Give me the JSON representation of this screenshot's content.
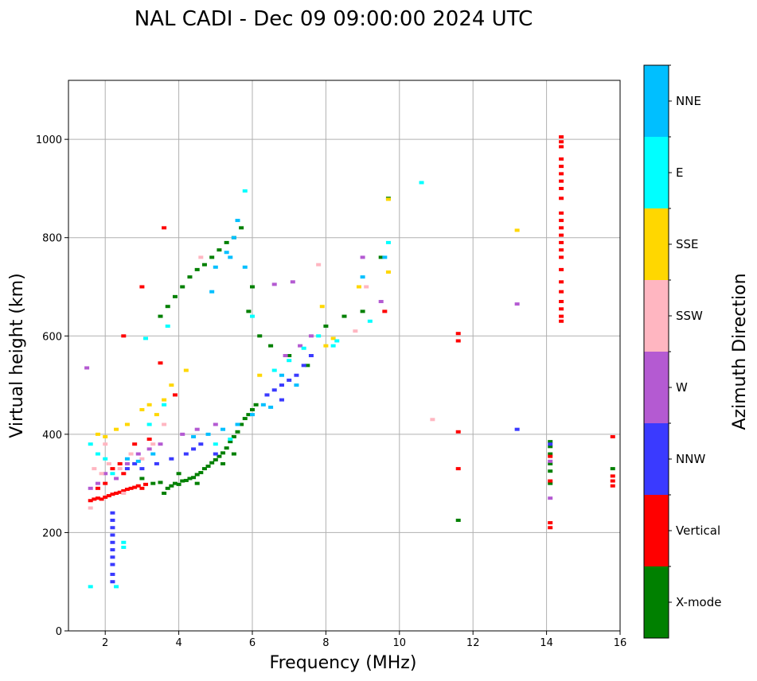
{
  "chart_data": {
    "type": "scatter",
    "title": "NAL CADI - Dec 09 09:00:00 2024 UTC",
    "xlabel": "Frequency (MHz)",
    "ylabel": "Virtual height (km)",
    "xlim": [
      1,
      16
    ],
    "ylim": [
      0,
      1120
    ],
    "xticks": [
      2,
      4,
      6,
      8,
      10,
      12,
      14,
      16
    ],
    "yticks": [
      0,
      200,
      400,
      600,
      800,
      1000
    ],
    "grid": true,
    "colorbar": {
      "title": "Azimuth Direction",
      "entries": [
        {
          "name": "X-mode",
          "color": "#008000"
        },
        {
          "name": "Vertical",
          "color": "#ff0000"
        },
        {
          "name": "NNW",
          "color": "#3a3aff"
        },
        {
          "name": "W",
          "color": "#b45ad2"
        },
        {
          "name": "SSW",
          "color": "#ffb6c1"
        },
        {
          "name": "SSE",
          "color": "#ffd700"
        },
        {
          "name": "E",
          "color": "#00ffff"
        },
        {
          "name": "NNE",
          "color": "#00bfff"
        }
      ]
    },
    "series": [
      {
        "name": "X-mode",
        "points": [
          [
            3.6,
            280
          ],
          [
            3.7,
            290
          ],
          [
            3.8,
            295
          ],
          [
            3.9,
            300
          ],
          [
            4.0,
            298
          ],
          [
            4.1,
            305
          ],
          [
            4.2,
            306
          ],
          [
            4.3,
            310
          ],
          [
            4.4,
            312
          ],
          [
            4.5,
            318
          ],
          [
            4.6,
            322
          ],
          [
            4.7,
            330
          ],
          [
            4.8,
            335
          ],
          [
            4.9,
            342
          ],
          [
            5.0,
            348
          ],
          [
            5.1,
            355
          ],
          [
            5.2,
            362
          ],
          [
            5.3,
            372
          ],
          [
            5.4,
            385
          ],
          [
            5.5,
            395
          ],
          [
            5.6,
            405
          ],
          [
            5.7,
            420
          ],
          [
            5.8,
            432
          ],
          [
            5.9,
            440
          ],
          [
            6.0,
            450
          ],
          [
            6.1,
            460
          ],
          [
            3.3,
            300
          ],
          [
            3.5,
            302
          ],
          [
            3.0,
            310
          ],
          [
            4.0,
            320
          ],
          [
            4.5,
            300
          ],
          [
            5.2,
            340
          ],
          [
            5.5,
            360
          ],
          [
            3.5,
            640
          ],
          [
            3.7,
            660
          ],
          [
            3.9,
            680
          ],
          [
            4.1,
            700
          ],
          [
            4.3,
            720
          ],
          [
            4.5,
            735
          ],
          [
            4.7,
            745
          ],
          [
            4.9,
            760
          ],
          [
            5.1,
            775
          ],
          [
            5.3,
            790
          ],
          [
            5.5,
            800
          ],
          [
            5.7,
            820
          ],
          [
            6.2,
            600
          ],
          [
            6.5,
            580
          ],
          [
            7.0,
            560
          ],
          [
            7.5,
            540
          ],
          [
            8.0,
            620
          ],
          [
            8.5,
            640
          ],
          [
            9.0,
            650
          ],
          [
            9.5,
            760
          ],
          [
            9.7,
            880
          ],
          [
            14.1,
            300
          ],
          [
            14.1,
            325
          ],
          [
            14.1,
            340
          ],
          [
            14.1,
            360
          ],
          [
            14.1,
            375
          ],
          [
            14.1,
            385
          ],
          [
            15.8,
            330
          ],
          [
            11.6,
            225
          ],
          [
            5.9,
            650
          ],
          [
            6.0,
            700
          ]
        ]
      },
      {
        "name": "Vertical",
        "points": [
          [
            1.6,
            265
          ],
          [
            1.7,
            268
          ],
          [
            1.8,
            270
          ],
          [
            1.9,
            268
          ],
          [
            2.0,
            272
          ],
          [
            2.1,
            275
          ],
          [
            2.2,
            278
          ],
          [
            2.3,
            280
          ],
          [
            2.4,
            282
          ],
          [
            2.5,
            285
          ],
          [
            2.6,
            288
          ],
          [
            2.7,
            290
          ],
          [
            2.8,
            292
          ],
          [
            2.9,
            295
          ],
          [
            3.0,
            290
          ],
          [
            3.1,
            298
          ],
          [
            2.2,
            330
          ],
          [
            2.4,
            340
          ],
          [
            2.5,
            320
          ],
          [
            2.0,
            300
          ],
          [
            1.8,
            290
          ],
          [
            2.8,
            380
          ],
          [
            3.2,
            390
          ],
          [
            3.0,
            700
          ],
          [
            3.5,
            545
          ],
          [
            3.6,
            820
          ],
          [
            2.5,
            600
          ],
          [
            3.9,
            480
          ],
          [
            14.4,
            1005
          ],
          [
            14.4,
            995
          ],
          [
            14.4,
            985
          ],
          [
            14.4,
            960
          ],
          [
            14.4,
            945
          ],
          [
            14.4,
            930
          ],
          [
            14.4,
            915
          ],
          [
            14.4,
            900
          ],
          [
            14.4,
            880
          ],
          [
            14.4,
            850
          ],
          [
            14.4,
            835
          ],
          [
            14.4,
            820
          ],
          [
            14.4,
            805
          ],
          [
            14.4,
            790
          ],
          [
            14.4,
            775
          ],
          [
            14.4,
            760
          ],
          [
            14.4,
            735
          ],
          [
            14.4,
            710
          ],
          [
            14.4,
            690
          ],
          [
            14.4,
            670
          ],
          [
            14.4,
            655
          ],
          [
            14.4,
            640
          ],
          [
            14.4,
            630
          ],
          [
            14.1,
            220
          ],
          [
            14.1,
            210
          ],
          [
            14.1,
            305
          ],
          [
            14.1,
            355
          ],
          [
            15.8,
            395
          ],
          [
            15.8,
            315
          ],
          [
            15.8,
            305
          ],
          [
            15.8,
            295
          ],
          [
            11.6,
            605
          ],
          [
            11.6,
            590
          ],
          [
            11.6,
            405
          ],
          [
            11.6,
            330
          ],
          [
            9.6,
            650
          ]
        ]
      },
      {
        "name": "NNW",
        "points": [
          [
            2.2,
            240
          ],
          [
            2.2,
            225
          ],
          [
            2.2,
            210
          ],
          [
            2.2,
            195
          ],
          [
            2.2,
            180
          ],
          [
            2.2,
            165
          ],
          [
            2.2,
            150
          ],
          [
            2.2,
            135
          ],
          [
            2.2,
            115
          ],
          [
            2.2,
            100
          ],
          [
            3.0,
            330
          ],
          [
            3.4,
            340
          ],
          [
            3.8,
            350
          ],
          [
            4.2,
            360
          ],
          [
            4.4,
            370
          ],
          [
            4.6,
            380
          ],
          [
            6.4,
            480
          ],
          [
            6.6,
            490
          ],
          [
            6.8,
            500
          ],
          [
            7.0,
            510
          ],
          [
            7.2,
            520
          ],
          [
            7.4,
            540
          ],
          [
            7.6,
            560
          ],
          [
            2.6,
            330
          ],
          [
            2.8,
            340
          ],
          [
            5.0,
            360
          ],
          [
            14.1,
            380
          ],
          [
            13.2,
            410
          ],
          [
            6.8,
            470
          ]
        ]
      },
      {
        "name": "W",
        "points": [
          [
            1.6,
            290
          ],
          [
            1.8,
            300
          ],
          [
            2.0,
            320
          ],
          [
            2.3,
            310
          ],
          [
            2.6,
            340
          ],
          [
            2.9,
            360
          ],
          [
            3.2,
            370
          ],
          [
            3.5,
            380
          ],
          [
            4.1,
            400
          ],
          [
            4.5,
            410
          ],
          [
            5.0,
            420
          ],
          [
            6.6,
            705
          ],
          [
            7.1,
            710
          ],
          [
            7.3,
            580
          ],
          [
            6.9,
            560
          ],
          [
            7.6,
            600
          ],
          [
            9.0,
            760
          ],
          [
            9.5,
            670
          ],
          [
            1.5,
            535
          ],
          [
            14.1,
            270
          ],
          [
            14.1,
            345
          ],
          [
            13.2,
            665
          ]
        ]
      },
      {
        "name": "SSW",
        "points": [
          [
            1.7,
            330
          ],
          [
            1.9,
            320
          ],
          [
            2.1,
            340
          ],
          [
            2.4,
            330
          ],
          [
            2.7,
            360
          ],
          [
            3.0,
            350
          ],
          [
            3.3,
            380
          ],
          [
            3.6,
            420
          ],
          [
            4.6,
            760
          ],
          [
            7.8,
            745
          ],
          [
            8.8,
            610
          ],
          [
            10.9,
            430
          ],
          [
            2.5,
            280
          ],
          [
            2.0,
            380
          ],
          [
            1.6,
            250
          ],
          [
            9.1,
            700
          ]
        ]
      },
      {
        "name": "SSE",
        "points": [
          [
            1.8,
            400
          ],
          [
            2.0,
            395
          ],
          [
            2.3,
            410
          ],
          [
            2.6,
            420
          ],
          [
            3.0,
            450
          ],
          [
            3.2,
            460
          ],
          [
            3.4,
            440
          ],
          [
            3.6,
            470
          ],
          [
            3.8,
            500
          ],
          [
            4.2,
            530
          ],
          [
            8.0,
            580
          ],
          [
            8.2,
            595
          ],
          [
            8.9,
            700
          ],
          [
            9.7,
            730
          ],
          [
            9.7,
            878
          ],
          [
            13.2,
            815
          ],
          [
            7.9,
            660
          ],
          [
            6.2,
            520
          ]
        ]
      },
      {
        "name": "E",
        "points": [
          [
            1.6,
            380
          ],
          [
            1.8,
            360
          ],
          [
            2.0,
            350
          ],
          [
            2.2,
            320
          ],
          [
            2.5,
            180
          ],
          [
            2.5,
            170
          ],
          [
            2.3,
            90
          ],
          [
            1.6,
            90
          ],
          [
            3.2,
            420
          ],
          [
            3.6,
            460
          ],
          [
            5.0,
            380
          ],
          [
            5.4,
            390
          ],
          [
            6.6,
            530
          ],
          [
            7.0,
            550
          ],
          [
            7.4,
            575
          ],
          [
            7.8,
            600
          ],
          [
            8.2,
            580
          ],
          [
            8.3,
            590
          ],
          [
            9.2,
            630
          ],
          [
            9.7,
            790
          ],
          [
            10.6,
            912
          ],
          [
            5.8,
            895
          ],
          [
            3.7,
            620
          ],
          [
            3.1,
            595
          ],
          [
            6.0,
            640
          ]
        ]
      },
      {
        "name": "NNE",
        "points": [
          [
            2.6,
            350
          ],
          [
            2.9,
            345
          ],
          [
            3.3,
            360
          ],
          [
            4.4,
            395
          ],
          [
            4.8,
            400
          ],
          [
            5.2,
            410
          ],
          [
            5.6,
            420
          ],
          [
            6.0,
            440
          ],
          [
            6.3,
            460
          ],
          [
            6.5,
            455
          ],
          [
            6.8,
            520
          ],
          [
            7.2,
            500
          ],
          [
            5.4,
            760
          ],
          [
            5.5,
            800
          ],
          [
            5.3,
            770
          ],
          [
            5.0,
            740
          ],
          [
            5.6,
            835
          ],
          [
            9.6,
            760
          ],
          [
            9.0,
            720
          ],
          [
            5.8,
            740
          ],
          [
            4.9,
            690
          ]
        ]
      }
    ]
  }
}
